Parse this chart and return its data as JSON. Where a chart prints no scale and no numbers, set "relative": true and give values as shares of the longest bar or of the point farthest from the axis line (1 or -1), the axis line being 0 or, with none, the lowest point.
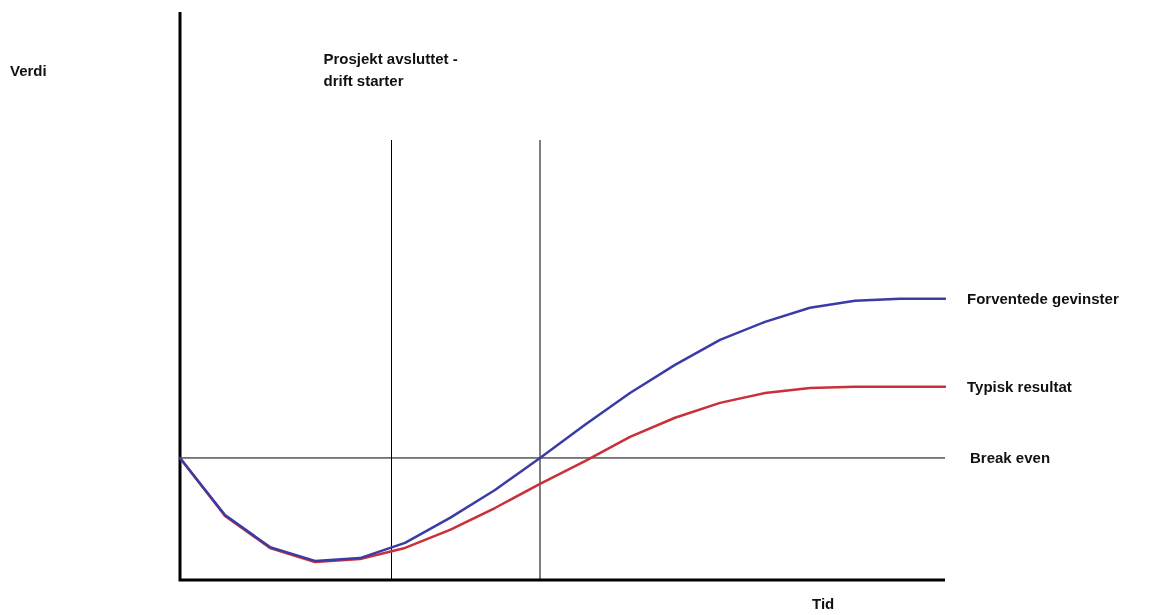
{
  "chart_data": {
    "type": "line",
    "relative": true,
    "xlabel": "Tid",
    "tick_labels": false,
    "legend": false,
    "marker": "none",
    "line_style": "solid",
    "categories": [
      null,
      null,
      null,
      null,
      null,
      null,
      null,
      null,
      null,
      null,
      null,
      null,
      null,
      null,
      null,
      null,
      null,
      null
    ],
    "series": [
      {
        "name": "Forventede gevinster",
        "color": "#3a3ca6",
        "values": [
          0.434,
          0.231,
          0.117,
          0.068,
          0.078,
          0.132,
          0.221,
          0.32,
          0.434,
          0.552,
          0.665,
          0.765,
          0.854,
          0.918,
          0.968,
          0.993,
          1,
          1
        ]
      },
      {
        "name": "Typisk resultat",
        "color": "#c8303a",
        "values": [
          0.434,
          0.228,
          0.114,
          0.064,
          0.075,
          0.114,
          0.178,
          0.256,
          0.342,
          0.423,
          0.509,
          0.577,
          0.63,
          0.665,
          0.683,
          0.687,
          0.687,
          0.687
        ]
      }
    ],
    "annotations": [
      "Verdi",
      "Prosjekt avsluttet - drift starter"
    ],
    "ref_lines": [
      {
        "axis": "y",
        "value": 0.434,
        "label": "Break even",
        "color": "#000000"
      }
    ]
  }
}
